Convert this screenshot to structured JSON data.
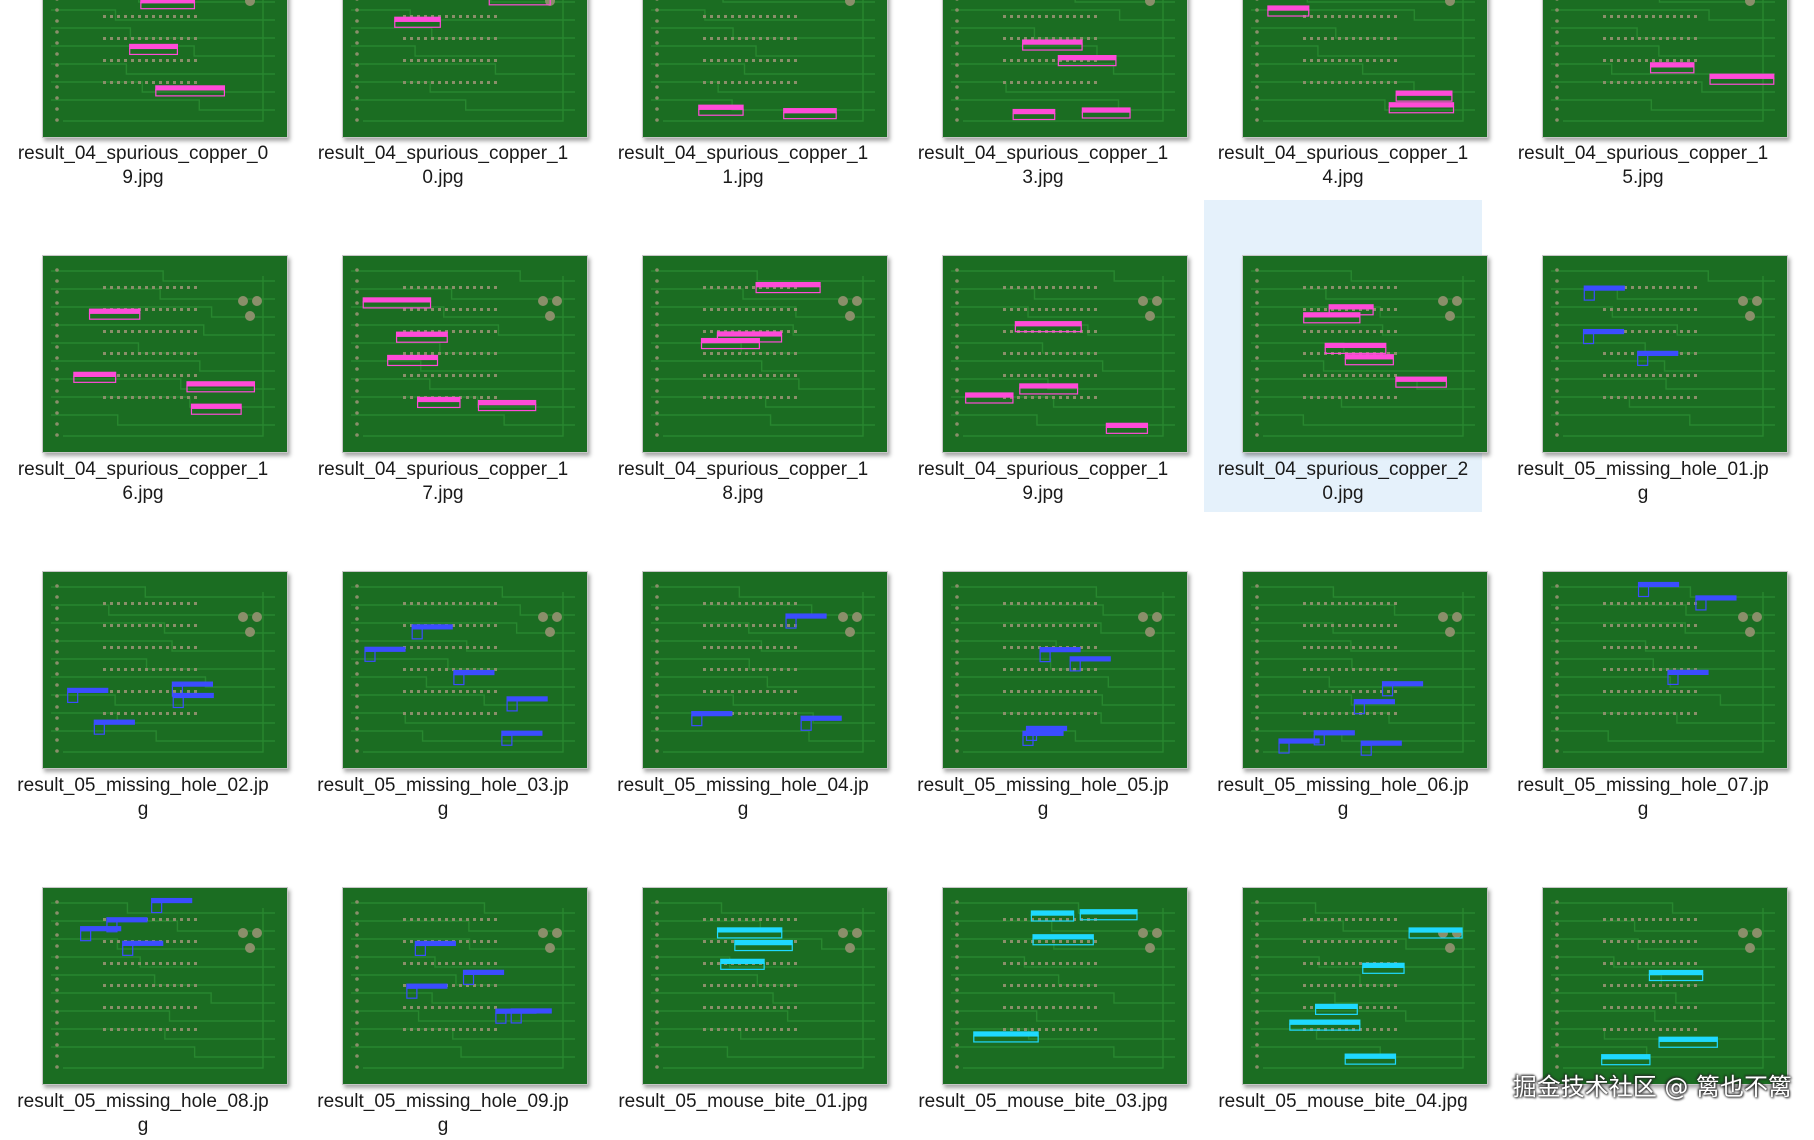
{
  "files": [
    {
      "name1": "result_04_spurious_copper_0",
      "name2": "9.jpg",
      "kind": "spurious"
    },
    {
      "name1": "result_04_spurious_copper_1",
      "name2": "0.jpg",
      "kind": "spurious"
    },
    {
      "name1": "result_04_spurious_copper_1",
      "name2": "1.jpg",
      "kind": "spurious"
    },
    {
      "name1": "result_04_spurious_copper_1",
      "name2": "3.jpg",
      "kind": "spurious"
    },
    {
      "name1": "result_04_spurious_copper_1",
      "name2": "4.jpg",
      "kind": "spurious"
    },
    {
      "name1": "result_04_spurious_copper_1",
      "name2": "5.jpg",
      "kind": "spurious"
    },
    {
      "name1": "result_04_spurious_copper_1",
      "name2": "6.jpg",
      "kind": "spurious"
    },
    {
      "name1": "result_04_spurious_copper_1",
      "name2": "7.jpg",
      "kind": "spurious"
    },
    {
      "name1": "result_04_spurious_copper_1",
      "name2": "8.jpg",
      "kind": "spurious"
    },
    {
      "name1": "result_04_spurious_copper_1",
      "name2": "9.jpg",
      "kind": "spurious"
    },
    {
      "name1": "result_04_spurious_copper_2",
      "name2": "0.jpg",
      "kind": "spurious",
      "selected": true
    },
    {
      "name1": "result_05_missing_hole_01.jp",
      "name2": "g",
      "kind": "missing"
    },
    {
      "name1": "result_05_missing_hole_02.jp",
      "name2": "g",
      "kind": "missing"
    },
    {
      "name1": "result_05_missing_hole_03.jp",
      "name2": "g",
      "kind": "missing"
    },
    {
      "name1": "result_05_missing_hole_04.jp",
      "name2": "g",
      "kind": "missing"
    },
    {
      "name1": "result_05_missing_hole_05.jp",
      "name2": "g",
      "kind": "missing"
    },
    {
      "name1": "result_05_missing_hole_06.jp",
      "name2": "g",
      "kind": "missing"
    },
    {
      "name1": "result_05_missing_hole_07.jp",
      "name2": "g",
      "kind": "missing"
    },
    {
      "name1": "result_05_missing_hole_08.jp",
      "name2": "g",
      "kind": "missing"
    },
    {
      "name1": "result_05_missing_hole_09.jp",
      "name2": "g",
      "kind": "missing"
    },
    {
      "name1": "result_05_mouse_bite_01.jpg",
      "name2": "",
      "kind": "mouse"
    },
    {
      "name1": "result_05_mouse_bite_03.jpg",
      "name2": "",
      "kind": "mouse"
    },
    {
      "name1": "result_05_mouse_bite_04.jpg",
      "name2": "",
      "kind": "mouse"
    },
    {
      "name1": "",
      "name2": "",
      "kind": "mouse"
    }
  ],
  "watermark": "掘金技术社区 @ 篱也不篱",
  "colors": {
    "board": "#1b6d22",
    "spurious_box": "#ff4bd8",
    "missing_box": "#3b4dff",
    "mouse_box": "#1fd9ff",
    "selected_bg": "#e5f1fb"
  }
}
